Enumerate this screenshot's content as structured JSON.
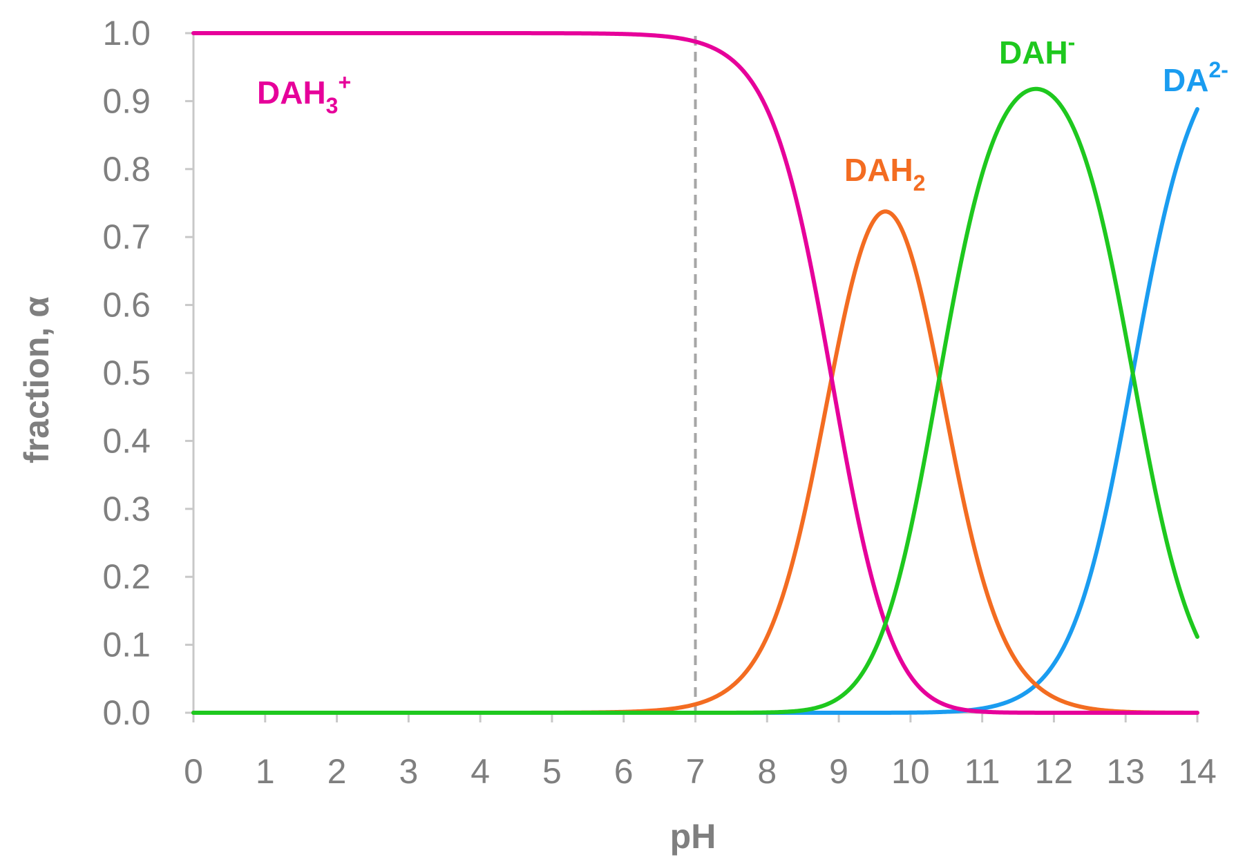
{
  "chart_data": {
    "type": "line",
    "title": "",
    "xlabel": "pH",
    "ylabel": "fraction, α",
    "xlim": [
      0,
      14
    ],
    "ylim": [
      0,
      1
    ],
    "x_ticks": [
      "0",
      "1",
      "2",
      "3",
      "4",
      "5",
      "6",
      "7",
      "8",
      "9",
      "10",
      "11",
      "12",
      "13",
      "14"
    ],
    "y_ticks": [
      "0.0",
      "0.1",
      "0.2",
      "0.3",
      "0.4",
      "0.5",
      "0.6",
      "0.7",
      "0.8",
      "0.9",
      "1.0"
    ],
    "grid": false,
    "legend": "none",
    "reference_line": {
      "x": 7,
      "style": "dashed",
      "color": "#a6a6a6"
    },
    "model": {
      "pKa1": 8.9,
      "pKa2": 10.4,
      "pKa3": 13.1
    },
    "x": [
      0,
      1,
      2,
      3,
      4,
      5,
      6,
      7,
      7.5,
      8,
      8.5,
      8.9,
      9,
      9.5,
      9.65,
      10,
      10.4,
      10.5,
      11,
      11.5,
      11.75,
      12,
      12.5,
      13,
      13.1,
      13.5,
      14
    ],
    "series": [
      {
        "name": "DAH3+",
        "label_main": "DAH",
        "label_sub": "3",
        "label_sup": "+",
        "color": "#e6009a",
        "values": [
          1.0,
          1.0,
          1.0,
          1.0,
          1.0,
          0.9999,
          0.9987,
          0.987,
          0.96,
          0.88,
          0.7,
          0.49,
          0.43,
          0.18,
          0.13,
          0.066,
          0.024,
          0.019,
          0.0057,
          0.0016,
          0.0009,
          0.0005,
          0.0001,
          2e-05,
          0.0,
          0.0,
          0.0
        ]
      },
      {
        "name": "DAH2",
        "label_main": "DAH",
        "label_sub": "2",
        "label_sup": "",
        "color": "#f36c21",
        "values": [
          0.0,
          0.0,
          0.0,
          0.0,
          0.0,
          0.0001,
          0.0013,
          0.0124,
          0.038,
          0.11,
          0.28,
          0.48,
          0.54,
          0.72,
          0.74,
          0.66,
          0.48,
          0.42,
          0.18,
          0.063,
          0.035,
          0.02,
          0.006,
          0.002,
          0.0015,
          0.0006,
          0.0001
        ]
      },
      {
        "name": "DAH-",
        "label_main": "DAH",
        "label_sub": "",
        "label_sup": "-",
        "color": "#1ec81e",
        "values": [
          0.0,
          0.0,
          0.0,
          0.0,
          0.0,
          0.0,
          0.0,
          0.0,
          0.0,
          0.0015,
          0.012,
          0.026,
          0.034,
          0.11,
          0.15,
          0.27,
          0.48,
          0.55,
          0.79,
          0.9,
          0.915,
          0.9,
          0.76,
          0.55,
          0.5,
          0.28,
          0.11
        ]
      },
      {
        "name": "DA2-",
        "label_main": "DA",
        "label_sub": "",
        "label_sup": "2-",
        "color": "#1a9cf0",
        "values": [
          0.0,
          0.0,
          0.0,
          0.0,
          0.0,
          0.0,
          0.0,
          0.0,
          0.0,
          0.0,
          0.0,
          0.0,
          0.0,
          0.0,
          0.0,
          0.0005,
          0.002,
          0.003,
          0.013,
          0.04,
          0.06,
          0.09,
          0.23,
          0.44,
          0.5,
          0.71,
          0.89
        ]
      }
    ]
  }
}
